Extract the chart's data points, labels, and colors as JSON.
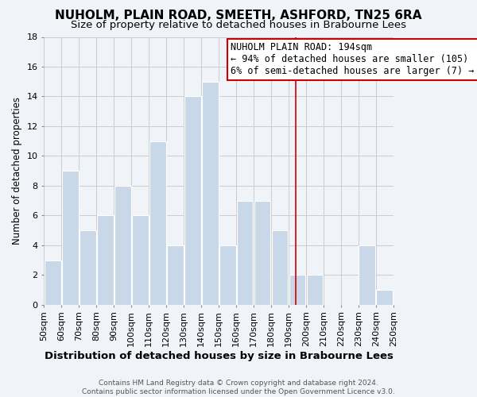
{
  "title": "NUHOLM, PLAIN ROAD, SMEETH, ASHFORD, TN25 6RA",
  "subtitle": "Size of property relative to detached houses in Brabourne Lees",
  "xlabel": "Distribution of detached houses by size in Brabourne Lees",
  "ylabel": "Number of detached properties",
  "footer_line1": "Contains HM Land Registry data © Crown copyright and database right 2024.",
  "footer_line2": "Contains public sector information licensed under the Open Government Licence v3.0.",
  "bins": [
    50,
    60,
    70,
    80,
    90,
    100,
    110,
    120,
    130,
    140,
    150,
    160,
    170,
    180,
    190,
    200,
    210,
    220,
    230,
    240,
    250
  ],
  "counts": [
    3,
    9,
    5,
    6,
    8,
    6,
    11,
    4,
    14,
    15,
    4,
    7,
    7,
    5,
    2,
    2,
    0,
    0,
    4,
    1
  ],
  "bar_color": "#c8d8e8",
  "bar_edge_color": "#ffffff",
  "grid_color": "#cccccc",
  "vline_x": 194,
  "vline_color": "#cc0000",
  "annotation_title": "NUHOLM PLAIN ROAD: 194sqm",
  "annotation_line1": "← 94% of detached houses are smaller (105)",
  "annotation_line2": "6% of semi-detached houses are larger (7) →",
  "annotation_box_color": "#ffffff",
  "annotation_border_color": "#cc0000",
  "ylim": [
    0,
    18
  ],
  "yticks": [
    0,
    2,
    4,
    6,
    8,
    10,
    12,
    14,
    16,
    18
  ],
  "background_color": "#f0f4f8",
  "title_fontsize": 11,
  "subtitle_fontsize": 9.5,
  "xlabel_fontsize": 9.5,
  "ylabel_fontsize": 8.5,
  "tick_fontsize": 8,
  "annotation_fontsize": 8.5,
  "footer_fontsize": 6.5
}
